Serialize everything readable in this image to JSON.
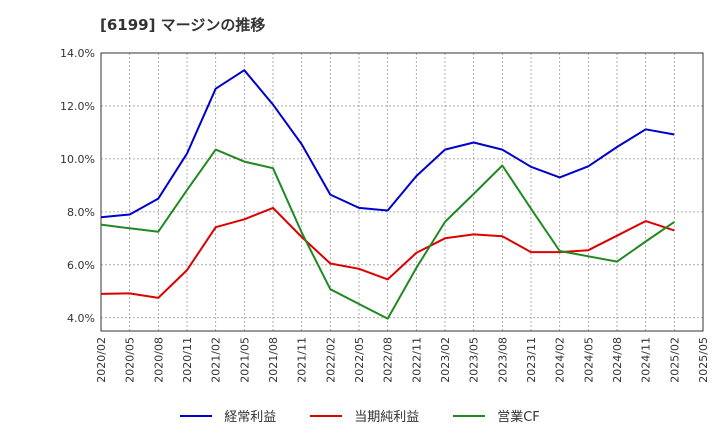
{
  "title": "[6199]  マージンの推移",
  "chart_data": {
    "type": "line",
    "title": "[6199]  マージンの推移",
    "x": [
      "2020/02",
      "2020/05",
      "2020/08",
      "2020/11",
      "2021/02",
      "2021/05",
      "2021/08",
      "2021/11",
      "2022/02",
      "2022/05",
      "2022/08",
      "2022/11",
      "2023/02",
      "2023/05",
      "2023/08",
      "2023/11",
      "2024/02",
      "2024/05",
      "2024/08",
      "2024/11",
      "2025/02",
      "2025/05"
    ],
    "y_ticks": [
      "4.0%",
      "6.0%",
      "8.0%",
      "10.0%",
      "12.0%",
      "14.0%"
    ],
    "y_tick_values": [
      4,
      6,
      8,
      10,
      12,
      14
    ],
    "ylim": [
      3.5,
      14
    ],
    "grid": true,
    "legend_position": "bottom",
    "series": [
      {
        "name": "経常利益",
        "color": "#0000cc",
        "values": [
          7.8,
          7.9,
          8.5,
          10.2,
          12.65,
          13.35,
          12.05,
          10.55,
          8.65,
          8.15,
          8.05,
          9.35,
          10.35,
          10.62,
          10.35,
          9.7,
          9.3,
          9.72,
          10.45,
          11.12,
          10.92,
          null
        ]
      },
      {
        "name": "当期純利益",
        "color": "#dd0000",
        "values": [
          4.9,
          4.92,
          4.75,
          5.8,
          7.42,
          7.72,
          8.15,
          7.05,
          6.05,
          5.85,
          5.45,
          6.45,
          7.0,
          7.15,
          7.08,
          6.48,
          6.48,
          6.55,
          7.1,
          7.65,
          7.3,
          null
        ]
      },
      {
        "name": "営業CF",
        "color": "#228822",
        "values": [
          7.52,
          7.38,
          7.25,
          8.82,
          10.35,
          9.9,
          9.65,
          7.22,
          5.08,
          4.52,
          3.97,
          5.88,
          7.62,
          8.68,
          9.75,
          8.12,
          6.52,
          6.32,
          6.12,
          6.88,
          7.62,
          null
        ]
      }
    ]
  }
}
